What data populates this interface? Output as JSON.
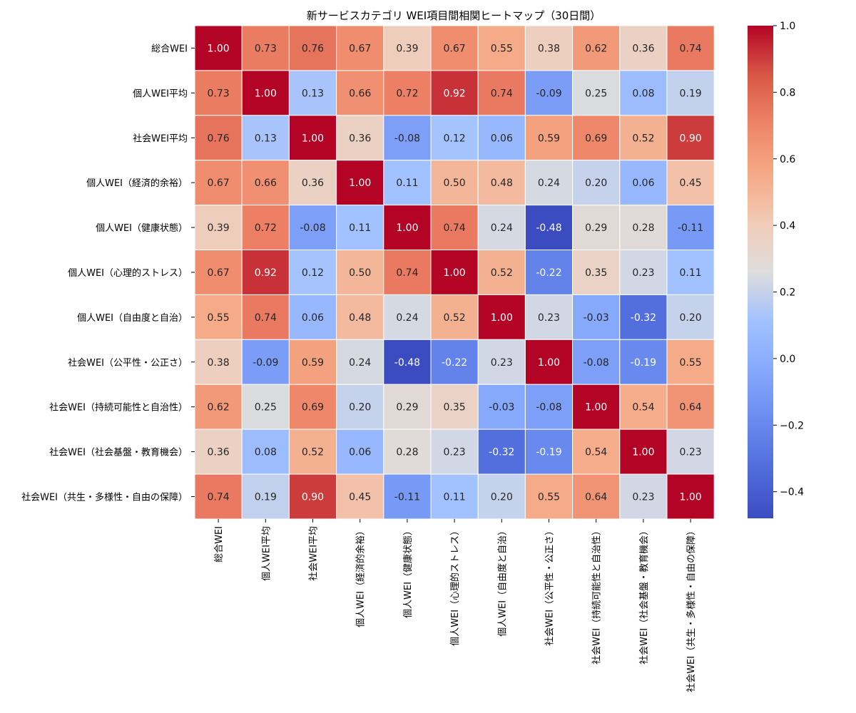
{
  "chart_data": {
    "type": "heatmap",
    "title": "新サービスカテゴリ WEI項目間相関ヒートマップ（30日間）",
    "row_labels": [
      "総合WEI",
      "個人WEI平均",
      "社会WEI平均",
      "個人WEI（経済的余裕）",
      "個人WEI（健康状態）",
      "個人WEI（心理的ストレス）",
      "個人WEI（自由度と自治）",
      "社会WEI（公平性・公正さ）",
      "社会WEI（持続可能性と自治性）",
      "社会WEI（社会基盤・教育機会）",
      "社会WEI（共生・多様性・自由の保障）"
    ],
    "col_labels": [
      "総合WEI",
      "個人WEI平均",
      "社会WEI平均",
      "個人WEI（経済的余裕）",
      "個人WEI（健康状態）",
      "個人WEI（心理的ストレス）",
      "個人WEI（自由度と自治）",
      "社会WEI（公平性・公正さ）",
      "社会WEI（持続可能性と自治性）",
      "社会WEI（社会基盤・教育機会）",
      "社会WEI（共生・多様性・自由の保障）"
    ],
    "values": [
      [
        1.0,
        0.73,
        0.76,
        0.67,
        0.39,
        0.67,
        0.55,
        0.38,
        0.62,
        0.36,
        0.74
      ],
      [
        0.73,
        1.0,
        0.13,
        0.66,
        0.72,
        0.92,
        0.74,
        -0.09,
        0.25,
        0.08,
        0.19
      ],
      [
        0.76,
        0.13,
        1.0,
        0.36,
        -0.08,
        0.12,
        0.06,
        0.59,
        0.69,
        0.52,
        0.9
      ],
      [
        0.67,
        0.66,
        0.36,
        1.0,
        0.11,
        0.5,
        0.48,
        0.24,
        0.2,
        0.06,
        0.45
      ],
      [
        0.39,
        0.72,
        -0.08,
        0.11,
        1.0,
        0.74,
        0.24,
        -0.48,
        0.29,
        0.28,
        -0.11
      ],
      [
        0.67,
        0.92,
        0.12,
        0.5,
        0.74,
        1.0,
        0.52,
        -0.22,
        0.35,
        0.23,
        0.11
      ],
      [
        0.55,
        0.74,
        0.06,
        0.48,
        0.24,
        0.52,
        1.0,
        0.23,
        -0.03,
        -0.32,
        0.2
      ],
      [
        0.38,
        -0.09,
        0.59,
        0.24,
        -0.48,
        -0.22,
        0.23,
        1.0,
        -0.08,
        -0.19,
        0.55
      ],
      [
        0.62,
        0.25,
        0.69,
        0.2,
        0.29,
        0.35,
        -0.03,
        -0.08,
        1.0,
        0.54,
        0.64
      ],
      [
        0.36,
        0.08,
        0.52,
        0.06,
        0.28,
        0.23,
        -0.32,
        -0.19,
        0.54,
        1.0,
        0.23
      ],
      [
        0.74,
        0.19,
        0.9,
        0.45,
        -0.11,
        0.11,
        0.2,
        0.55,
        0.64,
        0.23,
        1.0
      ]
    ],
    "value_format": "2 decimals",
    "colormap": "coolwarm",
    "color_range": [
      -0.48,
      1.0
    ],
    "colorbar_ticks": [
      1.0,
      0.8,
      0.6,
      0.4,
      0.2,
      0.0,
      -0.2,
      -0.4
    ],
    "colorbar_tick_labels": [
      "1.0",
      "0.8",
      "0.6",
      "0.4",
      "0.2",
      "0.0",
      "−0.2",
      "−0.4"
    ],
    "cell_border_color": "#ffffff",
    "text_color_dark": "#262626",
    "text_color_light": "#ffffff"
  }
}
